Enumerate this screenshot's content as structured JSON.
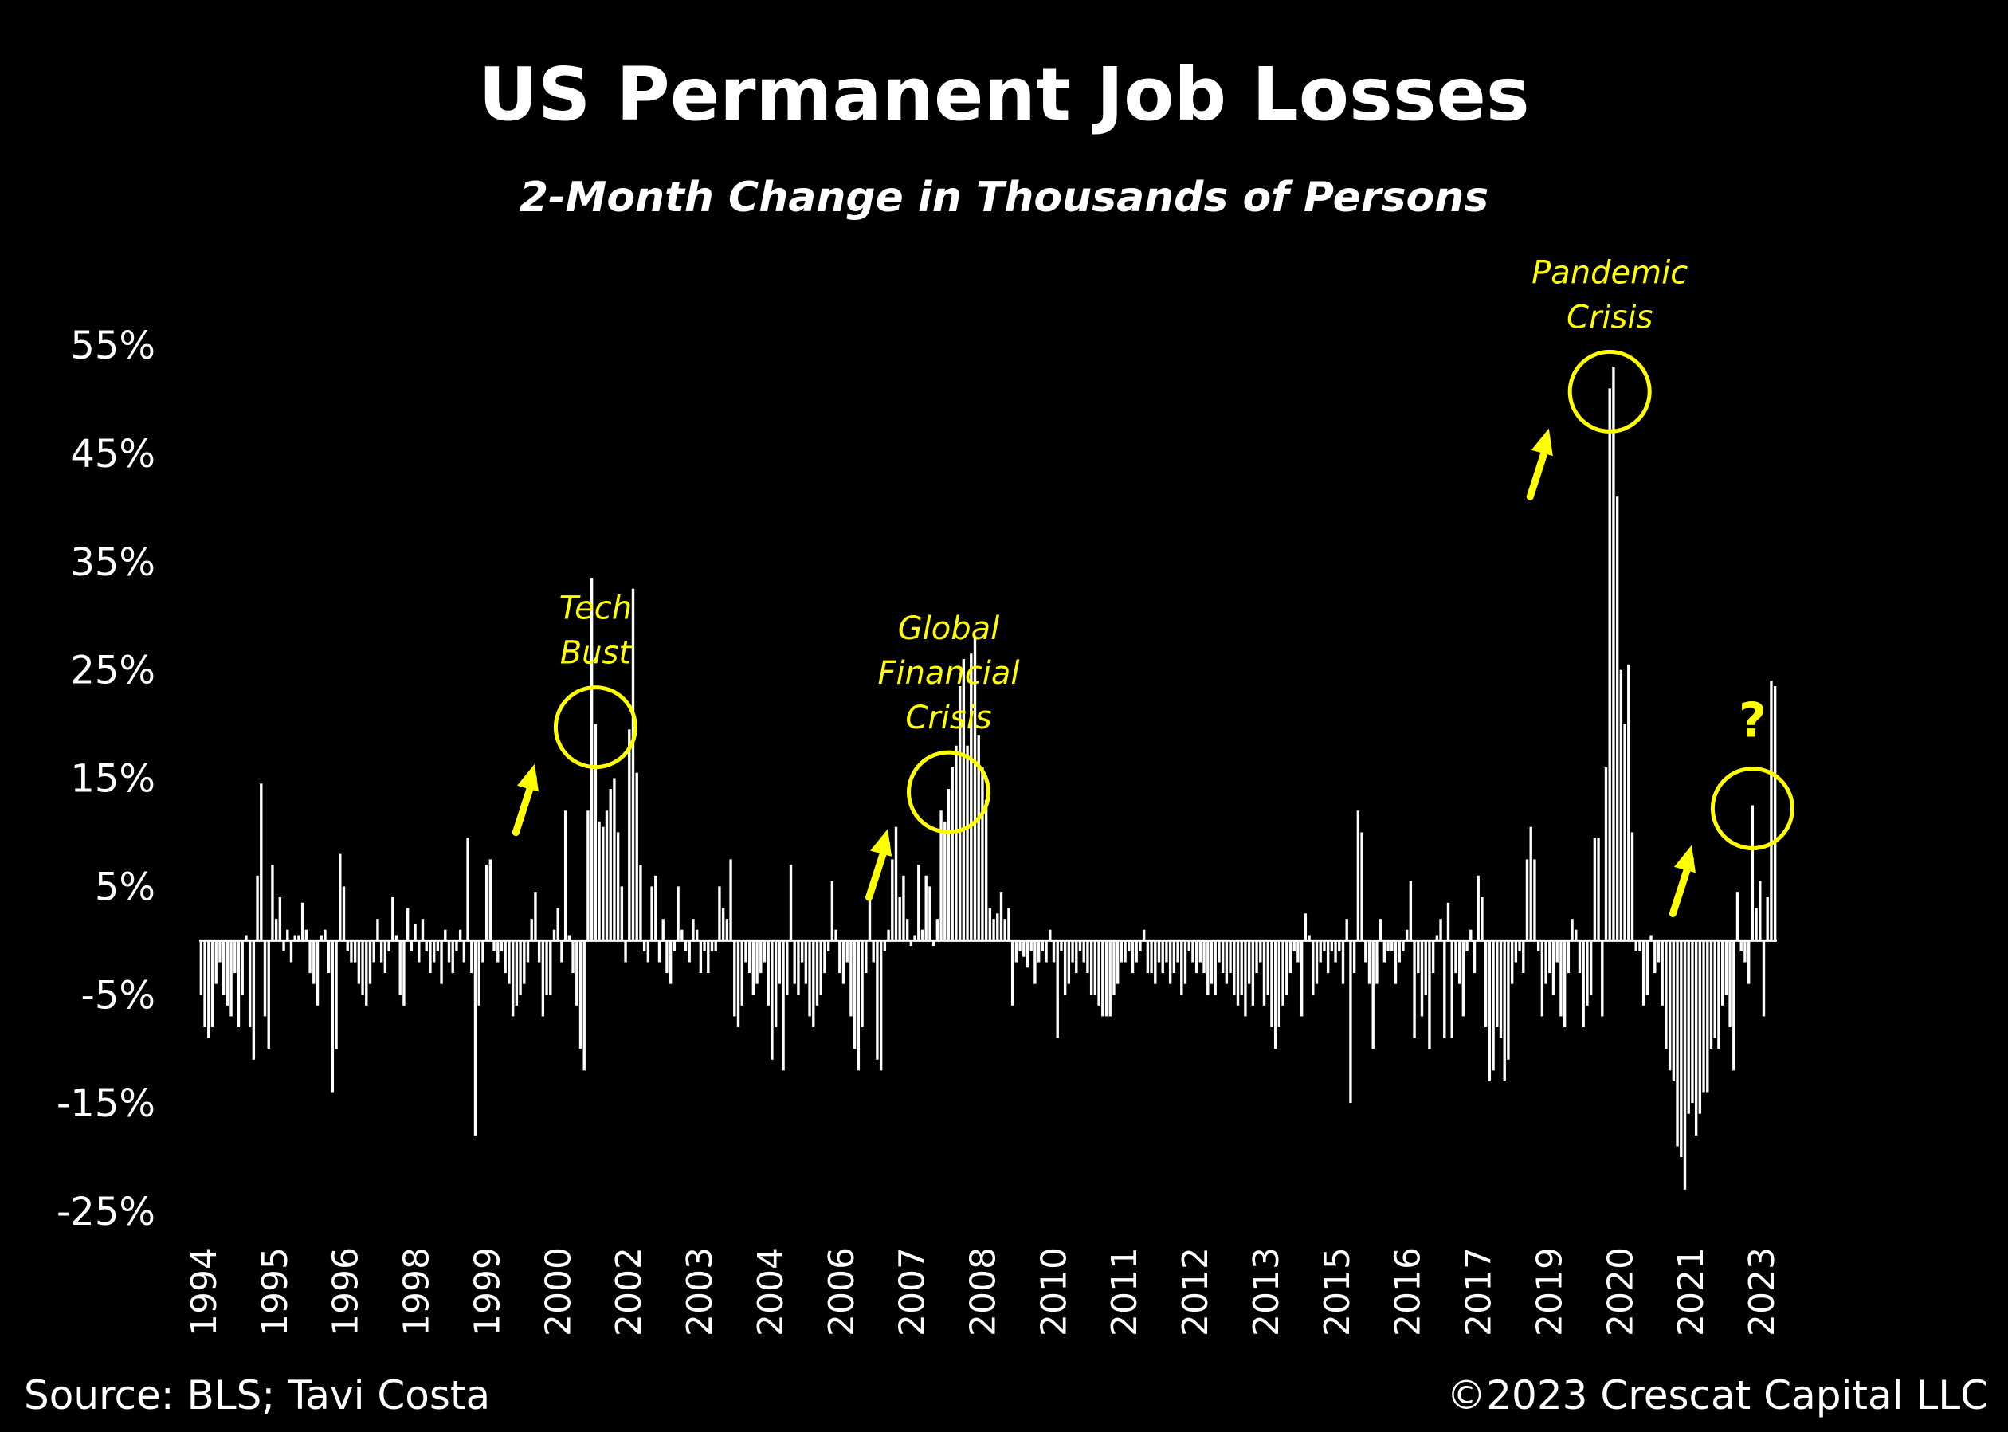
{
  "colors": {
    "background": "#000000",
    "bars": "#ffffff",
    "highlight": "#ffff00"
  },
  "footer": {
    "source": "Source: BLS; Tavi Costa",
    "copyright": "©2023 Crescat Capital LLC"
  },
  "chart_data": {
    "type": "bar",
    "title": "US Permanent Job Losses",
    "subtitle": "2-Month Change in Thousands of Persons",
    "ylim": [
      -25,
      55
    ],
    "yticks": [
      55,
      45,
      35,
      25,
      15,
      5,
      -5,
      -15,
      -25
    ],
    "ytick_labels": [
      "55%",
      "45%",
      "35%",
      "25%",
      "15%",
      "5%",
      "-5%",
      "-15%",
      "-25%"
    ],
    "xticks": [
      "1994",
      "1995",
      "1996",
      "1998",
      "1999",
      "2000",
      "2002",
      "2003",
      "2004",
      "2006",
      "2007",
      "2008",
      "2010",
      "2011",
      "2012",
      "2013",
      "2015",
      "2016",
      "2017",
      "2019",
      "2020",
      "2021",
      "2023"
    ],
    "grid": false,
    "legend": "none",
    "series": [
      {
        "values": [
          -5,
          -8,
          -9,
          -8,
          -4,
          -2,
          -5,
          -6,
          -7,
          -3,
          -8,
          -5,
          0.5,
          -8,
          -11,
          6,
          14.5,
          -7,
          -10,
          7,
          2,
          4,
          -1,
          1,
          -2,
          0.5,
          0.5,
          3.5,
          1,
          -3,
          -4,
          -6,
          0.5,
          1,
          -3,
          -14,
          -10,
          8,
          5,
          -1,
          -2,
          -2,
          -4,
          -5,
          -6,
          -4,
          -2,
          2,
          -2,
          -3,
          -1,
          4,
          0.5,
          -5,
          -6,
          3,
          -1,
          1.5,
          -2,
          2,
          -1,
          -3,
          -2,
          -1,
          -4,
          1,
          -2,
          -3,
          -1,
          1,
          -2,
          9.5,
          -3,
          -18,
          -6,
          -2,
          7,
          7.5,
          -1,
          -2,
          -1,
          -3,
          -4,
          -7,
          -6,
          -5,
          -4,
          -2,
          2,
          4.5,
          -2,
          -7,
          -5,
          -5,
          1,
          3,
          -2,
          12,
          0.5,
          -3,
          -6,
          -10,
          -12,
          12,
          33.5,
          20,
          11,
          10.5,
          12,
          14,
          15,
          10,
          5,
          -2,
          19.5,
          32.5,
          15.5,
          7,
          -1,
          -2,
          5,
          6,
          -2,
          2,
          -3,
          -4,
          -1,
          5,
          1,
          -1,
          -2,
          2,
          1,
          -3,
          -1,
          -3,
          -1,
          -1,
          5,
          3,
          2,
          7.5,
          -7,
          -8,
          -6,
          -2,
          -3,
          -5,
          -4,
          -3,
          -2,
          -6,
          -11,
          -8,
          -4,
          -12,
          -5,
          7,
          -4,
          -5,
          -2,
          -4,
          -7,
          -8,
          -6,
          -5,
          -3,
          -1,
          5.5,
          1,
          -3,
          -4,
          -2,
          -7,
          -10,
          -12,
          -8,
          -3,
          5,
          -2,
          -11,
          -12,
          -1,
          1,
          7.5,
          10.5,
          4,
          6,
          2,
          -0.5,
          0.5,
          7,
          1,
          6,
          5,
          -0.5,
          2,
          12,
          11,
          14,
          16,
          18,
          23.5,
          26,
          18,
          26.5,
          28,
          19,
          16,
          13,
          3,
          2,
          2.5,
          4.5,
          2,
          3,
          -6,
          -2,
          -1,
          -1.5,
          -2.5,
          -1,
          -4,
          -2,
          -1,
          -2,
          1,
          -2,
          -9,
          -1,
          -5,
          -4,
          -2,
          -3,
          -1,
          -2,
          -3,
          -5,
          -5,
          -6,
          -7,
          -7,
          -7,
          -5,
          -4,
          -2,
          -2,
          -1,
          -3,
          -2,
          -1,
          1,
          -3,
          -3,
          -4,
          -2,
          -3,
          -2,
          -4,
          -3,
          -2,
          -5,
          -4,
          -1,
          -2,
          -3,
          -2,
          -3,
          -5,
          -4,
          -5,
          -2,
          -3,
          -4,
          -3,
          -5,
          -6,
          -5,
          -7,
          -4,
          -6,
          -3,
          -2,
          -6,
          -5,
          -8,
          -10,
          -8,
          -6,
          -5,
          -3,
          -1,
          -2,
          -7,
          2.5,
          0.5,
          -5,
          -4,
          -2,
          -1,
          -3,
          -1,
          -2,
          -1,
          -4,
          2,
          -15,
          -3,
          12,
          10,
          -2,
          -4,
          -10,
          -4,
          2,
          -2,
          -1,
          -1,
          -4,
          -2,
          -1,
          1,
          5.5,
          -9,
          -3,
          -7,
          -5,
          -10,
          -3,
          0.5,
          2,
          -9,
          3.5,
          -9,
          -3,
          -4,
          -7,
          -1,
          1,
          -3,
          6,
          4,
          -8,
          -13,
          -12,
          -8,
          -9,
          -13,
          -11,
          -4,
          -2,
          -1,
          -3,
          7.5,
          10.5,
          7.5,
          -1,
          -7,
          -4,
          -3,
          -5,
          -2,
          -7,
          -8,
          -3,
          2,
          1,
          -3,
          -8,
          -6,
          -5,
          9.5,
          9.5,
          -7,
          16,
          51,
          53,
          41,
          25,
          20,
          25.5,
          10,
          -1,
          -1,
          -6,
          -5,
          0.5,
          -3,
          -2,
          -6,
          -10,
          -12,
          -13,
          -19,
          -20,
          -23,
          -16,
          -15,
          -18,
          -16,
          -14,
          -14,
          -10,
          -9,
          -10,
          -6,
          -5,
          -8,
          -12,
          4.5,
          -1,
          -2,
          -4,
          12.5,
          3,
          5.5,
          -7,
          4,
          24,
          23.5
        ]
      }
    ],
    "annotations": [
      {
        "label": [
          "Tech",
          "Bust"
        ],
        "x_index": 105
      },
      {
        "label": [
          "Global",
          "Financial",
          "Crisis"
        ],
        "x_index": 199
      },
      {
        "label": [
          "Pandemic",
          "Crisis"
        ],
        "x_index": 375
      },
      {
        "label": [
          "?"
        ],
        "x_index": 413
      }
    ]
  }
}
